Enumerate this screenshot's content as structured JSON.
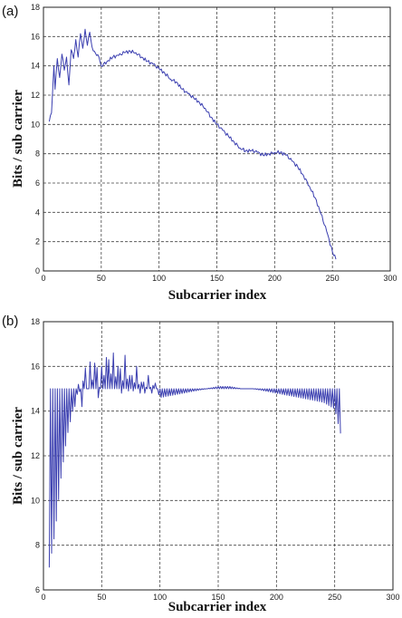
{
  "chart_data": [
    {
      "panel": "(a)",
      "type": "line",
      "title": "",
      "xlabel": "Subcarrier index",
      "ylabel": "Bits / sub carrier",
      "xlim": [
        0,
        300
      ],
      "ylim": [
        0,
        18
      ],
      "xticks": [
        "0",
        "50",
        "100",
        "150",
        "200",
        "250",
        "300"
      ],
      "yticks": [
        "0",
        "2",
        "4",
        "6",
        "8",
        "10",
        "12",
        "14",
        "16",
        "18"
      ],
      "grid": true,
      "series": [
        {
          "color": "#3b3fb0",
          "x": [
            5,
            7,
            9,
            10,
            12,
            14,
            16,
            18,
            20,
            22,
            24,
            26,
            28,
            30,
            32,
            34,
            36,
            38,
            40,
            42,
            44,
            46,
            48,
            50,
            55,
            60,
            65,
            70,
            75,
            80,
            85,
            90,
            95,
            100,
            105,
            110,
            115,
            120,
            125,
            130,
            135,
            140,
            145,
            150,
            155,
            160,
            165,
            170,
            175,
            180,
            185,
            190,
            195,
            200,
            205,
            210,
            215,
            220,
            225,
            230,
            235,
            240,
            245,
            250,
            253
          ],
          "y": [
            10.2,
            10.8,
            14.0,
            12.4,
            14.5,
            13.2,
            14.8,
            13.7,
            14.6,
            12.7,
            15.1,
            14.5,
            15.8,
            14.6,
            16.2,
            15.2,
            16.5,
            15.4,
            16.3,
            15.3,
            15.0,
            14.7,
            14.6,
            14.0,
            14.3,
            14.6,
            14.7,
            14.9,
            15.0,
            14.9,
            14.6,
            14.3,
            14.1,
            13.8,
            13.5,
            13.1,
            12.9,
            12.4,
            12.1,
            11.8,
            11.5,
            11.1,
            10.5,
            10.0,
            9.6,
            9.2,
            8.8,
            8.4,
            8.2,
            8.2,
            8.1,
            7.9,
            8.0,
            8.1,
            8.1,
            7.9,
            7.5,
            7.1,
            6.5,
            5.8,
            5.0,
            3.9,
            2.7,
            1.3,
            0.8
          ]
        }
      ]
    },
    {
      "panel": "(b)",
      "type": "line",
      "title": "",
      "xlabel": "Subcarrier index",
      "ylabel": "Bits / sub carrier",
      "xlim": [
        0,
        300
      ],
      "ylim": [
        6,
        18
      ],
      "xticks": [
        "0",
        "50",
        "100",
        "150",
        "200",
        "250",
        "300"
      ],
      "yticks": [
        "6",
        "8",
        "10",
        "12",
        "14",
        "16",
        "18"
      ],
      "grid": true,
      "cap": 15,
      "series": [
        {
          "color": "#3b3fb0",
          "x": [
            5,
            10,
            15,
            20,
            25,
            28,
            30,
            33,
            35,
            38,
            40,
            43,
            45,
            47,
            50,
            53,
            55,
            57,
            60,
            63,
            65,
            67,
            70,
            73,
            75,
            77,
            80,
            83,
            85,
            87,
            90,
            93,
            95,
            97,
            100,
            110,
            120,
            130,
            140,
            150,
            160,
            170,
            180,
            190,
            200,
            210,
            220,
            230,
            240,
            250,
            255
          ],
          "y": [
            7.0,
            8.6,
            11.0,
            12.8,
            14.0,
            14.3,
            15.2,
            14.2,
            16.5,
            14.8,
            16.2,
            15.0,
            17.3,
            14.6,
            16.0,
            15.4,
            17.4,
            15.2,
            16.6,
            15.0,
            17.0,
            14.8,
            16.5,
            14.9,
            16.3,
            14.9,
            16.0,
            14.8,
            15.8,
            14.8,
            15.6,
            14.8,
            15.5,
            15.0,
            14.6,
            14.7,
            14.8,
            14.9,
            15.0,
            15.1,
            15.1,
            15.0,
            15.0,
            14.9,
            14.8,
            14.7,
            14.6,
            14.5,
            14.4,
            14.1,
            13.0
          ]
        }
      ]
    }
  ]
}
